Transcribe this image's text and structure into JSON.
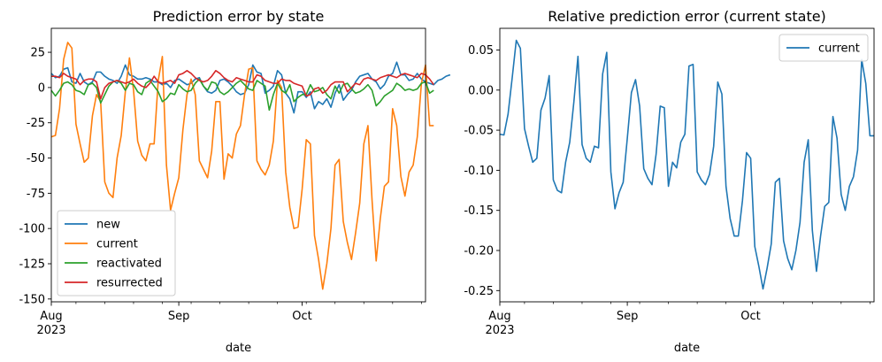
{
  "chart_data": [
    {
      "type": "line",
      "title": "Prediction error by state",
      "xlabel": "date",
      "ylabel": "",
      "x_start": "2023-08-01",
      "x_end": "2023-10-31",
      "x_ticks": [
        {
          "date": "2023-08-01",
          "label": "Aug",
          "sublabel": "2023"
        },
        {
          "date": "2023-09-01",
          "label": "Sep",
          "sublabel": ""
        },
        {
          "date": "2023-10-01",
          "label": "Oct",
          "sublabel": ""
        }
      ],
      "ylim": [
        -152,
        42
      ],
      "y_ticks": [
        25,
        0,
        -25,
        -50,
        -75,
        -100,
        -125,
        -150
      ],
      "grid": false,
      "legend_position": "lower-left",
      "series": [
        {
          "name": "new",
          "color": "#1f77b4",
          "values": [
            10,
            7,
            8,
            13,
            14,
            4,
            3,
            10,
            4,
            2,
            4,
            11,
            11,
            8,
            6,
            5,
            3,
            8,
            16,
            9,
            8,
            6,
            6,
            7,
            6,
            4,
            4,
            2,
            3,
            0,
            5,
            6,
            4,
            2,
            3,
            6,
            7,
            1,
            -3,
            -4,
            -2,
            5,
            6,
            4,
            1,
            -3,
            -5,
            -4,
            2,
            16,
            11,
            10,
            -4,
            -2,
            1,
            12,
            9,
            -4,
            -8,
            -18,
            -3,
            -3,
            -7,
            -3,
            -15,
            -10,
            -12,
            -8,
            -14,
            -4,
            2,
            -9,
            -5,
            -2,
            4,
            8,
            9,
            10,
            6,
            4,
            -1,
            2,
            8,
            10,
            18,
            9,
            9,
            5,
            6,
            10,
            6,
            4,
            3,
            2,
            5,
            6,
            8,
            9
          ]
        },
        {
          "name": "current",
          "color": "#ff7f0e",
          "values": [
            -35,
            -34,
            -15,
            20,
            32,
            28,
            -26,
            -40,
            -53,
            -50,
            -20,
            -5,
            -10,
            -67,
            -75,
            -78,
            -50,
            -34,
            -3,
            21,
            -2,
            -38,
            -48,
            -52,
            -40,
            -40,
            5,
            22,
            -55,
            -87,
            -75,
            -64,
            -30,
            -5,
            6,
            -5,
            -52,
            -58,
            -64,
            -45,
            -10,
            -10,
            -65,
            -47,
            -50,
            -33,
            -27,
            -5,
            13,
            14,
            -52,
            -58,
            -62,
            -55,
            -38,
            5,
            0,
            -60,
            -85,
            -100,
            -99,
            -72,
            -37,
            -40,
            -105,
            -122,
            -143,
            -125,
            -100,
            -55,
            -51,
            -95,
            -110,
            -122,
            -103,
            -82,
            -40,
            -27,
            -80,
            -123,
            -93,
            -70,
            -67,
            -15,
            -27,
            -63,
            -77,
            -60,
            -55,
            -35,
            3,
            16,
            -27,
            -27
          ]
        },
        {
          "name": "reactivated",
          "color": "#2ca02c",
          "values": [
            -2,
            -6,
            -2,
            3,
            4,
            2,
            -2,
            -3,
            -5,
            2,
            3,
            0,
            -11,
            -5,
            1,
            4,
            5,
            3,
            -2,
            3,
            2,
            -3,
            -5,
            3,
            5,
            1,
            -3,
            -10,
            -8,
            -4,
            -5,
            2,
            -1,
            -3,
            -2,
            3,
            6,
            1,
            -2,
            4,
            3,
            -3,
            -5,
            -3,
            0,
            3,
            5,
            2,
            -1,
            -2,
            5,
            3,
            1,
            -16,
            -5,
            3,
            -2,
            -4,
            2,
            -10,
            -7,
            -5,
            -5,
            2,
            -3,
            -2,
            0,
            -5,
            -8,
            1,
            -4,
            2,
            3,
            -1,
            -4,
            -3,
            -1,
            2,
            -2,
            -13,
            -10,
            -6,
            -4,
            -2,
            3,
            1,
            -2,
            -1,
            -2,
            -1,
            3,
            4,
            -4,
            -2
          ]
        },
        {
          "name": "resurrected",
          "color": "#d62728",
          "values": [
            8,
            8,
            7,
            10,
            8,
            7,
            6,
            2,
            5,
            6,
            6,
            4,
            -8,
            0,
            3,
            4,
            5,
            4,
            3,
            4,
            6,
            3,
            1,
            0,
            3,
            8,
            4,
            3,
            4,
            5,
            3,
            9,
            10,
            12,
            10,
            7,
            5,
            4,
            5,
            8,
            12,
            10,
            7,
            5,
            4,
            7,
            6,
            5,
            4,
            4,
            9,
            8,
            5,
            4,
            3,
            3,
            6,
            5,
            5,
            3,
            2,
            1,
            -6,
            -5,
            -1,
            0,
            -4,
            -2,
            2,
            4,
            4,
            4,
            -3,
            0,
            3,
            2,
            6,
            7,
            6,
            5,
            7,
            8,
            9,
            8,
            7,
            9,
            10,
            9,
            8,
            7,
            10,
            9,
            6,
            2
          ]
        }
      ]
    },
    {
      "type": "line",
      "title": "Relative prediction error (current state)",
      "xlabel": "date",
      "ylabel": "",
      "x_start": "2023-08-01",
      "x_end": "2023-10-31",
      "x_ticks": [
        {
          "date": "2023-08-01",
          "label": "Aug",
          "sublabel": "2023"
        },
        {
          "date": "2023-09-01",
          "label": "Sep",
          "sublabel": ""
        },
        {
          "date": "2023-10-01",
          "label": "Oct",
          "sublabel": ""
        }
      ],
      "ylim": [
        -0.264,
        0.077
      ],
      "y_ticks": [
        "0.05",
        "0.00",
        "-0.05",
        "-0.10",
        "-0.15",
        "-0.20",
        "-0.25"
      ],
      "grid": false,
      "legend_position": "top-right",
      "series": [
        {
          "name": "current",
          "color": "#1f77b4",
          "values": [
            -0.055,
            -0.056,
            -0.03,
            0.015,
            0.062,
            0.052,
            -0.048,
            -0.07,
            -0.09,
            -0.085,
            -0.025,
            -0.01,
            0.018,
            -0.112,
            -0.125,
            -0.128,
            -0.09,
            -0.065,
            -0.015,
            0.042,
            -0.068,
            -0.085,
            -0.09,
            -0.07,
            -0.072,
            0.02,
            0.047,
            -0.102,
            -0.148,
            -0.128,
            -0.115,
            -0.06,
            -0.003,
            0.013,
            -0.02,
            -0.098,
            -0.11,
            -0.118,
            -0.08,
            -0.02,
            -0.022,
            -0.12,
            -0.09,
            -0.097,
            -0.065,
            -0.055,
            0.03,
            0.032,
            -0.102,
            -0.112,
            -0.118,
            -0.105,
            -0.07,
            0.01,
            -0.005,
            -0.12,
            -0.16,
            -0.182,
            -0.182,
            -0.138,
            -0.078,
            -0.085,
            -0.195,
            -0.22,
            -0.248,
            -0.222,
            -0.192,
            -0.115,
            -0.11,
            -0.188,
            -0.21,
            -0.224,
            -0.2,
            -0.165,
            -0.09,
            -0.062,
            -0.175,
            -0.226,
            -0.182,
            -0.145,
            -0.14,
            -0.033,
            -0.06,
            -0.13,
            -0.15,
            -0.12,
            -0.108,
            -0.075,
            0.038,
            0.008,
            -0.057,
            -0.057
          ]
        }
      ]
    }
  ]
}
